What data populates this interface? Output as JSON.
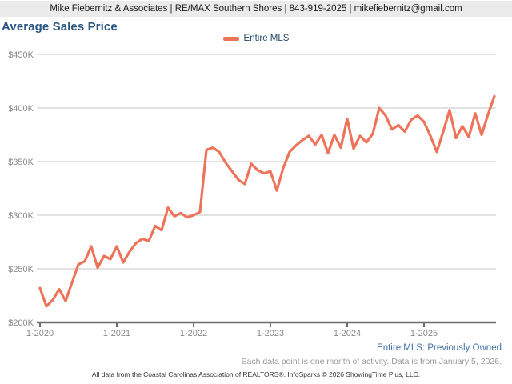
{
  "header": {
    "text": "Mike Fiebernitz & Associates | RE/MAX Southern Shores | 843-919-2025 | mikefiebernitz@gmail.com"
  },
  "title": "Average Sales Price",
  "legend": {
    "label": "Entire MLS",
    "swatch_color": "#ED7459"
  },
  "notes": {
    "series_note": "Entire MLS: Previously Owned",
    "data_note": "Each data point is one month of activity. Data is from January 5, 2026.",
    "attribution": "All data from the Coastal Carolinas Association of REALTORS®. InfoSparks © 2026 ShowingTime Plus, LLC."
  },
  "colors": {
    "line": "#ED7459",
    "title": "#2A5782",
    "legend_text": "#25496B",
    "series_note_text": "#3E6FA5",
    "axis": "#6E6E6E",
    "gridline": "#C4C4C4",
    "tick_label": "#8A8A8A",
    "header_bg": "#EBEBEB"
  },
  "chart_data": {
    "type": "line",
    "title": "Average Sales Price",
    "x_frequency": "monthly",
    "x_range": "January 2020 - December 2025",
    "x_tick_labels": [
      "1-2020",
      "1-2021",
      "1-2022",
      "1-2023",
      "1-2024",
      "1-2025"
    ],
    "y_tick_labels": [
      "$200K",
      "$250K",
      "$300K",
      "$350K",
      "$400K",
      "$450K"
    ],
    "y_tick_values": [
      200,
      250,
      300,
      350,
      400,
      450
    ],
    "ylim": [
      200000,
      450000
    ],
    "units": "USD",
    "values_unit": "thousands of dollars",
    "grid": "horizontal",
    "legend_position": "top-center",
    "series": [
      {
        "name": "Entire MLS",
        "color": "#ED7459",
        "values_by_year": {
          "2020": [
            232,
            215,
            221,
            231,
            220,
            237,
            254,
            257,
            271,
            251,
            262,
            259
          ],
          "2021": [
            271,
            256,
            266,
            274,
            278,
            276,
            290,
            286,
            307,
            299,
            302,
            298
          ],
          "2022": [
            300,
            303,
            361,
            363,
            359,
            349,
            341,
            333,
            329,
            348,
            342,
            339
          ],
          "2023": [
            341,
            323,
            344,
            359,
            365,
            370,
            374,
            366,
            375,
            358,
            375,
            363
          ],
          "2024": [
            390,
            362,
            374,
            368,
            376,
            400,
            393,
            380,
            384,
            378,
            389,
            393
          ],
          "2025": [
            387,
            374,
            359,
            378,
            398,
            372,
            383,
            373,
            395,
            375,
            394,
            411
          ]
        }
      }
    ]
  }
}
